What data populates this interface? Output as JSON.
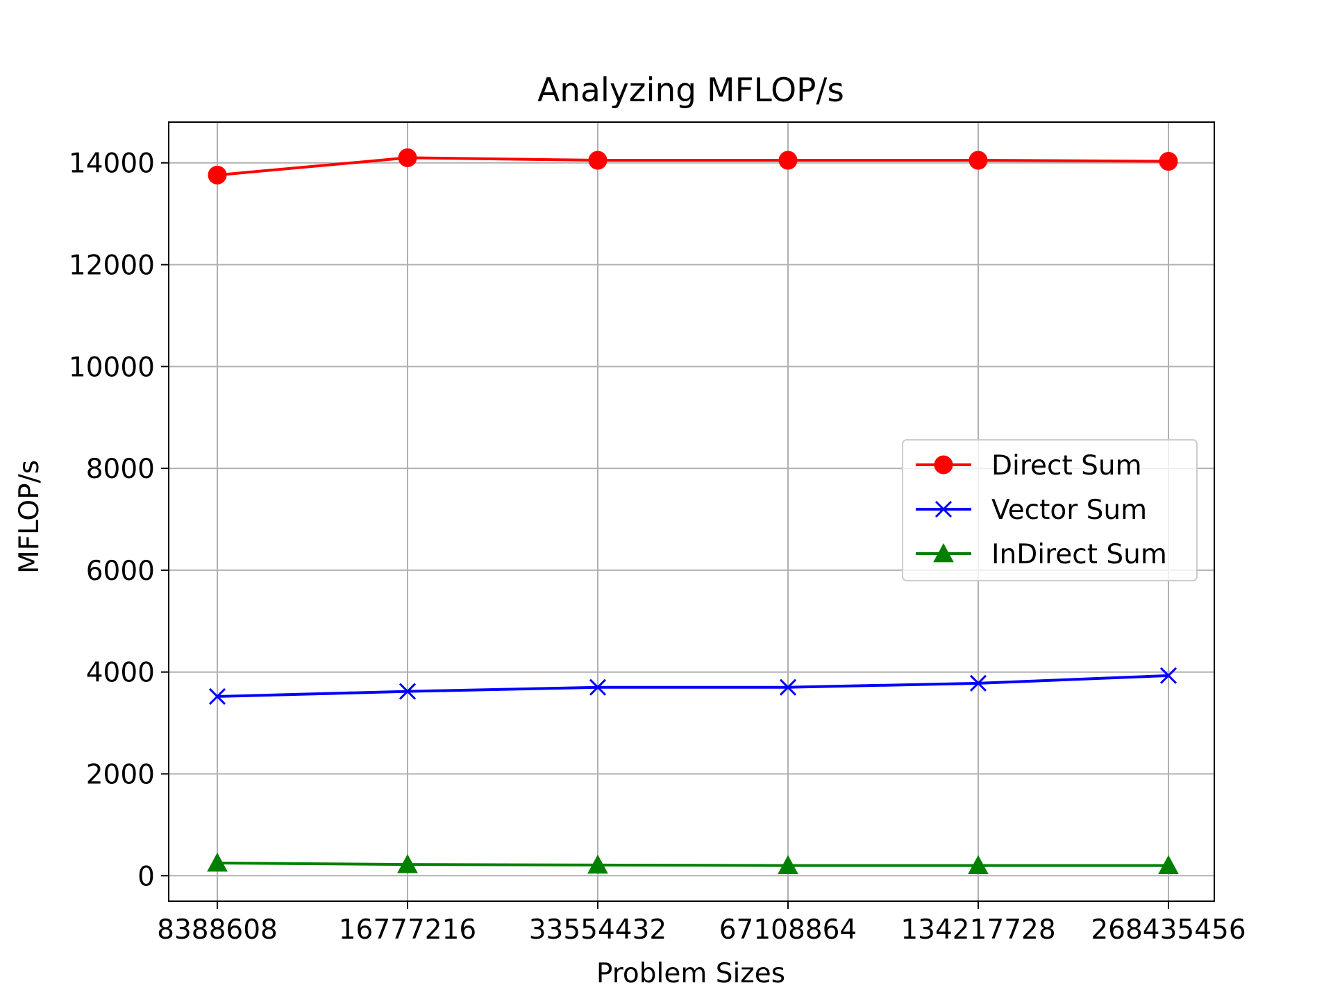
{
  "chart_data": {
    "type": "line",
    "title": "Analyzing MFLOP/s",
    "xlabel": "Problem Sizes",
    "ylabel": "MFLOP/s",
    "categories": [
      "8388608",
      "16777216",
      "33554432",
      "67108864",
      "134217728",
      "268435456"
    ],
    "ylim": [
      -500,
      14800
    ],
    "yticks": [
      0,
      2000,
      4000,
      6000,
      8000,
      10000,
      12000,
      14000
    ],
    "grid": true,
    "legend_position": "center-right",
    "series": [
      {
        "name": "Direct Sum",
        "color": "#ff0000",
        "marker": "circle",
        "values": [
          13760,
          14100,
          14050,
          14050,
          14050,
          14030
        ]
      },
      {
        "name": "Vector Sum",
        "color": "#0000ff",
        "marker": "x",
        "values": [
          3520,
          3620,
          3700,
          3700,
          3780,
          3930
        ]
      },
      {
        "name": "InDirect Sum",
        "color": "#008000",
        "marker": "triangle",
        "values": [
          250,
          220,
          210,
          200,
          200,
          200
        ]
      }
    ]
  }
}
